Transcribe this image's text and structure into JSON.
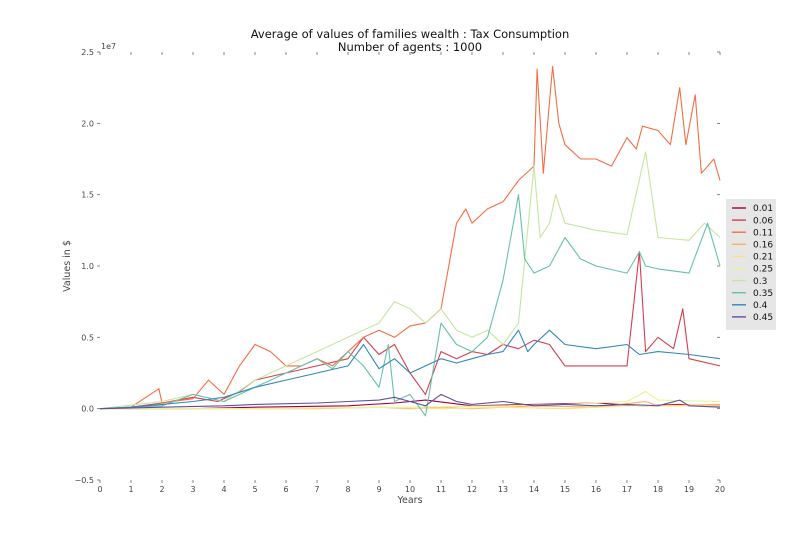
{
  "chart_data": {
    "type": "line",
    "title": "Average of values of families wealth : Tax Consumption",
    "subtitle": "Number of agents : 1000",
    "xlabel": "Years",
    "ylabel": "Values in $",
    "y_offset_label": "1e7",
    "xlim": [
      0,
      20
    ],
    "ylim": [
      -0.5,
      2.5
    ],
    "y_units": "x 1e7",
    "xticks": [
      "0",
      "1",
      "2",
      "3",
      "4",
      "5",
      "6",
      "7",
      "8",
      "9",
      "10",
      "11",
      "12",
      "13",
      "14",
      "15",
      "16",
      "17",
      "18",
      "19",
      "20"
    ],
    "yticks": [
      "−0.5",
      "0.0",
      "0.5",
      "1.0",
      "1.5",
      "2.0",
      "2.5"
    ],
    "ytick_values": [
      -0.5,
      0,
      0.5,
      1.0,
      1.5,
      2.0,
      2.5
    ],
    "grid": false,
    "legend_position": "center-right",
    "series": [
      {
        "name": "0.01",
        "color": "#9e0142",
        "points": [
          [
            0,
            0
          ],
          [
            3,
            0
          ],
          [
            5,
            0.01
          ],
          [
            8,
            0.02
          ],
          [
            9.5,
            0.04
          ],
          [
            10.5,
            0.06
          ],
          [
            12,
            0.02
          ],
          [
            14,
            0.03
          ],
          [
            16,
            0.04
          ],
          [
            17.5,
            0.02
          ],
          [
            18.7,
            0.03
          ],
          [
            19.5,
            0.02
          ],
          [
            20,
            0.02
          ]
        ]
      },
      {
        "name": "0.06",
        "color": "#d53e4f",
        "points": [
          [
            0,
            0
          ],
          [
            1,
            0.01
          ],
          [
            2,
            0.04
          ],
          [
            3,
            0.08
          ],
          [
            3.8,
            0.05
          ],
          [
            4.5,
            0.12
          ],
          [
            5,
            0.2
          ],
          [
            6,
            0.25
          ],
          [
            7,
            0.3
          ],
          [
            8,
            0.35
          ],
          [
            8.5,
            0.5
          ],
          [
            9,
            0.38
          ],
          [
            9.5,
            0.45
          ],
          [
            10,
            0.25
          ],
          [
            10.5,
            0.1
          ],
          [
            11,
            0.4
          ],
          [
            11.5,
            0.35
          ],
          [
            12,
            0.4
          ],
          [
            12.5,
            0.38
          ],
          [
            13,
            0.45
          ],
          [
            13.5,
            0.42
          ],
          [
            14,
            0.48
          ],
          [
            14.5,
            0.45
          ],
          [
            15,
            0.3
          ],
          [
            16,
            0.3
          ],
          [
            17,
            0.3
          ],
          [
            17.4,
            1.1
          ],
          [
            17.6,
            0.4
          ],
          [
            18,
            0.5
          ],
          [
            18.5,
            0.42
          ],
          [
            18.8,
            0.7
          ],
          [
            19,
            0.35
          ],
          [
            20,
            0.3
          ]
        ]
      },
      {
        "name": "0.11",
        "color": "#f46d43",
        "points": [
          [
            0,
            0
          ],
          [
            1,
            0.01
          ],
          [
            1.9,
            0.14
          ],
          [
            2,
            0.04
          ],
          [
            3,
            0.07
          ],
          [
            3.5,
            0.2
          ],
          [
            4,
            0.1
          ],
          [
            4.5,
            0.3
          ],
          [
            5,
            0.45
          ],
          [
            5.5,
            0.4
          ],
          [
            6,
            0.3
          ],
          [
            6.5,
            0.3
          ],
          [
            7,
            0.35
          ],
          [
            7.5,
            0.3
          ],
          [
            8,
            0.4
          ],
          [
            8.5,
            0.5
          ],
          [
            9,
            0.55
          ],
          [
            9.5,
            0.5
          ],
          [
            10,
            0.58
          ],
          [
            10.5,
            0.6
          ],
          [
            11,
            0.7
          ],
          [
            11.5,
            1.3
          ],
          [
            11.8,
            1.4
          ],
          [
            12,
            1.3
          ],
          [
            12.5,
            1.4
          ],
          [
            13,
            1.45
          ],
          [
            13.5,
            1.6
          ],
          [
            14,
            1.7
          ],
          [
            14.1,
            2.38
          ],
          [
            14.3,
            1.65
          ],
          [
            14.6,
            2.4
          ],
          [
            14.8,
            2.0
          ],
          [
            15,
            1.85
          ],
          [
            15.5,
            1.75
          ],
          [
            16,
            1.75
          ],
          [
            16.5,
            1.7
          ],
          [
            17,
            1.9
          ],
          [
            17.3,
            1.82
          ],
          [
            17.5,
            1.98
          ],
          [
            18,
            1.95
          ],
          [
            18.4,
            1.85
          ],
          [
            18.7,
            2.25
          ],
          [
            18.9,
            1.85
          ],
          [
            19.2,
            2.2
          ],
          [
            19.4,
            1.65
          ],
          [
            19.8,
            1.75
          ],
          [
            20,
            1.6
          ]
        ]
      },
      {
        "name": "0.16",
        "color": "#fdae61",
        "points": [
          [
            0,
            0
          ],
          [
            4,
            0
          ],
          [
            7,
            0
          ],
          [
            9,
            0.01
          ],
          [
            10,
            0.0
          ],
          [
            11,
            0.01
          ],
          [
            12,
            0.0
          ],
          [
            14,
            0.02
          ],
          [
            16,
            0.01
          ],
          [
            17.6,
            0.05
          ],
          [
            18,
            0.02
          ],
          [
            20,
            0.03
          ]
        ]
      },
      {
        "name": "0.21",
        "color": "#fee08b",
        "points": [
          [
            0,
            0
          ],
          [
            5,
            0
          ],
          [
            9,
            0.01
          ],
          [
            11,
            0.0
          ],
          [
            13,
            0.01
          ],
          [
            15,
            0.0
          ],
          [
            17,
            0.02
          ],
          [
            20,
            0.02
          ]
        ]
      },
      {
        "name": "0.25",
        "color": "#e6f598",
        "points": [
          [
            0,
            0
          ],
          [
            5,
            0
          ],
          [
            10,
            0.01
          ],
          [
            13,
            0.02
          ],
          [
            15,
            0.03
          ],
          [
            17,
            0.05
          ],
          [
            17.6,
            0.12
          ],
          [
            18,
            0.06
          ],
          [
            20,
            0.05
          ]
        ]
      },
      {
        "name": "0.3",
        "color": "#c5e6a0",
        "points": [
          [
            0,
            0
          ],
          [
            2,
            0.05
          ],
          [
            3,
            0.1
          ],
          [
            4,
            0.05
          ],
          [
            5,
            0.2
          ],
          [
            6,
            0.3
          ],
          [
            7,
            0.4
          ],
          [
            8,
            0.5
          ],
          [
            9,
            0.6
          ],
          [
            9.5,
            0.75
          ],
          [
            10,
            0.7
          ],
          [
            10.5,
            0.6
          ],
          [
            11,
            0.7
          ],
          [
            11.5,
            0.55
          ],
          [
            12,
            0.5
          ],
          [
            12.5,
            0.55
          ],
          [
            13,
            0.45
          ],
          [
            13.5,
            0.6
          ],
          [
            14,
            1.7
          ],
          [
            14.2,
            1.2
          ],
          [
            14.5,
            1.3
          ],
          [
            14.7,
            1.5
          ],
          [
            15,
            1.3
          ],
          [
            16,
            1.25
          ],
          [
            17,
            1.22
          ],
          [
            17.6,
            1.8
          ],
          [
            18,
            1.2
          ],
          [
            19,
            1.18
          ],
          [
            19.5,
            1.3
          ],
          [
            20,
            1.2
          ]
        ]
      },
      {
        "name": "0.35",
        "color": "#66c2a5",
        "points": [
          [
            0,
            0
          ],
          [
            2,
            0.02
          ],
          [
            3,
            0.1
          ],
          [
            4,
            0.05
          ],
          [
            5,
            0.15
          ],
          [
            6,
            0.25
          ],
          [
            7,
            0.35
          ],
          [
            7.5,
            0.28
          ],
          [
            8,
            0.4
          ],
          [
            8.5,
            0.3
          ],
          [
            9,
            0.15
          ],
          [
            9.3,
            0.45
          ],
          [
            9.5,
            0.05
          ],
          [
            10,
            0.1
          ],
          [
            10.5,
            -0.05
          ],
          [
            11,
            0.6
          ],
          [
            11.5,
            0.45
          ],
          [
            12,
            0.4
          ],
          [
            12.5,
            0.5
          ],
          [
            13,
            0.9
          ],
          [
            13.5,
            1.5
          ],
          [
            13.7,
            1.05
          ],
          [
            14,
            0.95
          ],
          [
            14.5,
            1.0
          ],
          [
            15,
            1.2
          ],
          [
            15.5,
            1.05
          ],
          [
            16,
            1.0
          ],
          [
            17,
            0.95
          ],
          [
            17.4,
            1.1
          ],
          [
            17.6,
            1.0
          ],
          [
            18,
            0.98
          ],
          [
            19,
            0.95
          ],
          [
            19.6,
            1.3
          ],
          [
            20,
            1.0
          ]
        ]
      },
      {
        "name": "0.4",
        "color": "#3288bd",
        "points": [
          [
            0,
            0
          ],
          [
            1,
            0.01
          ],
          [
            2,
            0.03
          ],
          [
            3,
            0.05
          ],
          [
            4,
            0.08
          ],
          [
            5,
            0.15
          ],
          [
            6,
            0.2
          ],
          [
            7,
            0.25
          ],
          [
            8,
            0.3
          ],
          [
            8.5,
            0.45
          ],
          [
            9,
            0.28
          ],
          [
            9.5,
            0.35
          ],
          [
            10,
            0.25
          ],
          [
            10.5,
            0.3
          ],
          [
            11,
            0.35
          ],
          [
            11.5,
            0.32
          ],
          [
            12,
            0.35
          ],
          [
            12.5,
            0.38
          ],
          [
            13,
            0.4
          ],
          [
            13.5,
            0.55
          ],
          [
            13.8,
            0.4
          ],
          [
            14,
            0.45
          ],
          [
            14.5,
            0.55
          ],
          [
            15,
            0.45
          ],
          [
            16,
            0.42
          ],
          [
            17,
            0.45
          ],
          [
            17.4,
            0.38
          ],
          [
            18,
            0.4
          ],
          [
            19,
            0.38
          ],
          [
            20,
            0.35
          ]
        ]
      },
      {
        "name": "0.45",
        "color": "#5e4fa2",
        "points": [
          [
            0,
            0
          ],
          [
            2,
            0.01
          ],
          [
            4,
            0.02
          ],
          [
            5,
            0.03
          ],
          [
            7,
            0.04
          ],
          [
            8,
            0.05
          ],
          [
            9,
            0.06
          ],
          [
            9.5,
            0.08
          ],
          [
            10,
            0.05
          ],
          [
            10.5,
            0.02
          ],
          [
            11,
            0.1
          ],
          [
            11.5,
            0.05
          ],
          [
            12,
            0.03
          ],
          [
            13,
            0.05
          ],
          [
            14,
            0.02
          ],
          [
            15,
            0.03
          ],
          [
            16,
            0.02
          ],
          [
            17,
            0.03
          ],
          [
            18,
            0.02
          ],
          [
            18.7,
            0.06
          ],
          [
            19,
            0.02
          ],
          [
            20,
            0.01
          ]
        ]
      }
    ]
  }
}
